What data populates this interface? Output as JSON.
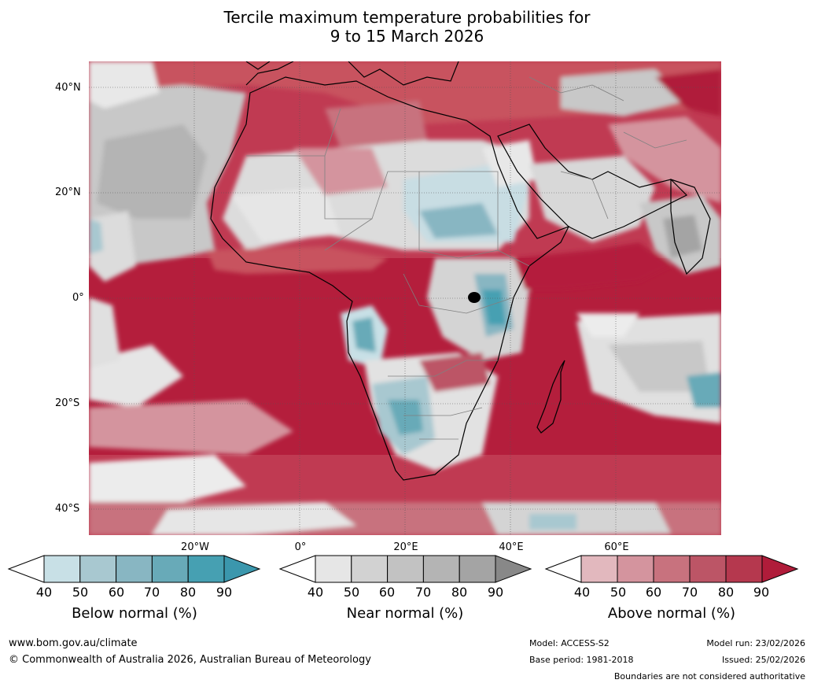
{
  "title": {
    "line1": "Tercile maximum temperature probabilities for",
    "line2": "9 to 15 March 2026"
  },
  "map": {
    "region": "Africa",
    "lat_labels": [
      "40°N",
      "20°N",
      "0°",
      "20°S",
      "40°S"
    ],
    "lon_labels": [
      "20°W",
      "0°",
      "20°E",
      "40°E",
      "60°E"
    ],
    "colors": {
      "ocean_above": "#b41e3c",
      "land_lines": "#000000",
      "borders": "#808080",
      "gridlines": "#444444"
    }
  },
  "colorbars": [
    {
      "name": "below",
      "title": "Below normal (%)",
      "ticks": [
        "40",
        "50",
        "60",
        "70",
        "80",
        "90"
      ],
      "colors": [
        "#ffffff",
        "#c8e0e6",
        "#a8c8d0",
        "#88b6c2",
        "#68aab8",
        "#46a0b2",
        "#3b97ad"
      ]
    },
    {
      "name": "near",
      "title": "Near normal (%)",
      "ticks": [
        "40",
        "50",
        "60",
        "70",
        "80",
        "90"
      ],
      "colors": [
        "#ffffff",
        "#e6e6e6",
        "#d2d2d2",
        "#c2c2c2",
        "#b4b4b4",
        "#a4a4a4",
        "#888888"
      ]
    },
    {
      "name": "above",
      "title": "Above normal (%)",
      "ticks": [
        "40",
        "50",
        "60",
        "70",
        "80",
        "90"
      ],
      "colors": [
        "#ffffff",
        "#e2b8be",
        "#d4949e",
        "#c8727e",
        "#bc5566",
        "#b5384e",
        "#b01c3a"
      ]
    }
  ],
  "footer": {
    "url": "www.bom.gov.au/climate",
    "copyright": "© Commonwealth of Australia 2026, Australian Bureau of Meteorology",
    "model": "Model: ACCESS-S2",
    "base_period": "Base period: 1981-2018",
    "model_run": "Model run: 23/02/2026",
    "issued": "Issued: 25/02/2026",
    "disclaimer": "Boundaries are not considered authoritative"
  }
}
